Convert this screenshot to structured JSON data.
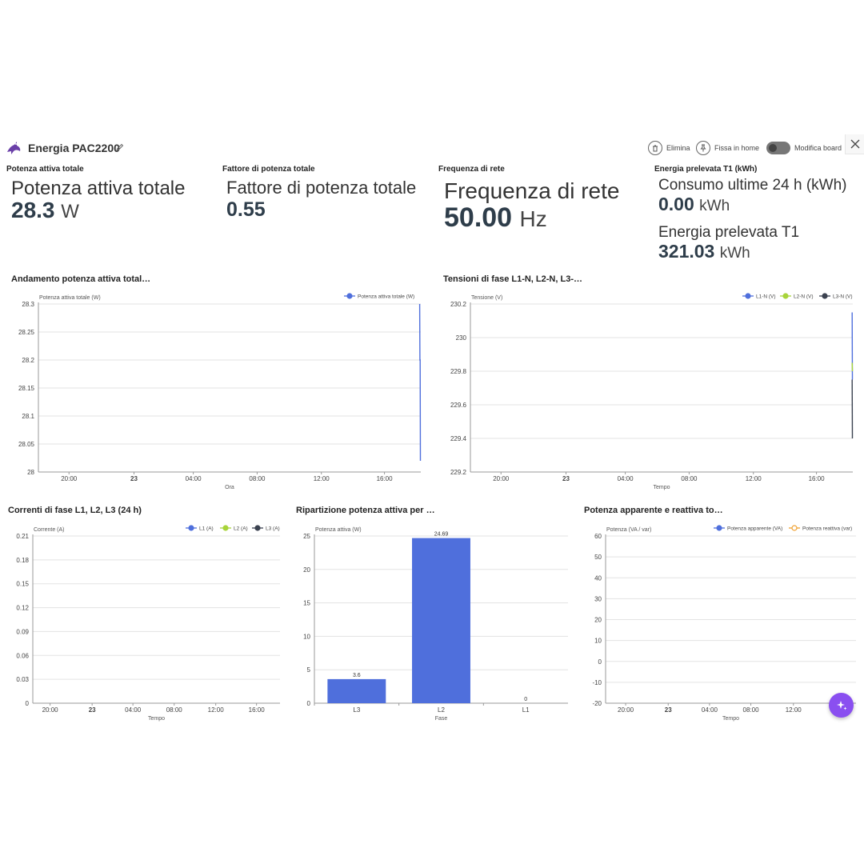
{
  "header": {
    "title": "Energia PAC2200",
    "buttons": {
      "delete": "Elimina",
      "pin": "Fissa in home",
      "edit_board": "Modifica board"
    }
  },
  "cards": {
    "power": {
      "title": "Potenza attiva totale",
      "label": "Potenza attiva totale",
      "value": "28.3",
      "unit": "W"
    },
    "pf": {
      "title": "Fattore di potenza totale",
      "label": "Fattore di potenza totale",
      "value": "0.55"
    },
    "freq": {
      "title": "Frequenza di rete",
      "label": "Frequenza di rete",
      "value": "50.00",
      "unit": "Hz"
    },
    "energy": {
      "title": "Energia prelevata T1 (kWh)",
      "label1": "Consumo ultime 24 h (kWh)",
      "value1": "0.00",
      "unit1": "kWh",
      "label2": "Energia prelevata T1",
      "value2": "321.03",
      "unit2": "kWh"
    }
  },
  "panels": {
    "p1": "Andamento potenza attiva total…",
    "p2": "Tensioni di fase L1-N, L2-N, L3-…",
    "p3": "Correnti di fase L1, L2, L3 (24 h)",
    "p4": "Ripartizione potenza attiva per …",
    "p5": "Potenza apparente e reattiva to…"
  },
  "colors": {
    "blue": "#4f6fdc",
    "lime": "#a8d43a",
    "dark": "#3b4250",
    "orange": "#f0a030",
    "accent": "#8a4ff0"
  },
  "icons": {
    "logo": "bird-logo-icon",
    "edit": "pencil-icon",
    "delete": "trash-icon",
    "pin": "pin-icon",
    "close": "close-icon",
    "fab": "sparkle-icon"
  },
  "chart_data": [
    {
      "id": "power",
      "type": "line",
      "ylabel": "Potenza attiva totale (W)",
      "xlabel": "Ora",
      "ylim": [
        28,
        28.3
      ],
      "yticks": [
        "28.3",
        "28.25",
        "28.2",
        "28.15",
        "28.1",
        "28.05",
        "28"
      ],
      "xticks": [
        "20:00",
        "23",
        "04:00",
        "08:00",
        "12:00",
        "16:00"
      ],
      "series": [
        {
          "name": "Potenza attiva totale (W)",
          "values": [
            28.3,
            28.2,
            28.2,
            28.02
          ]
        }
      ]
    },
    {
      "id": "voltage",
      "type": "line",
      "ylabel": "Tensione (V)",
      "xlabel": "Tempo",
      "ylim": [
        229.2,
        230.2
      ],
      "yticks": [
        "230.2",
        "230",
        "229.8",
        "229.6",
        "229.4",
        "229.2"
      ],
      "xticks": [
        "20:00",
        "23",
        "04:00",
        "08:00",
        "12:00",
        "16:00"
      ],
      "series": [
        {
          "name": "L1-N (V)",
          "values": [
            230.15,
            229.75
          ]
        },
        {
          "name": "L2-N (V)",
          "values": [
            229.85,
            229.8
          ]
        },
        {
          "name": "L3-N (V)",
          "values": [
            229.75,
            229.4
          ]
        }
      ]
    },
    {
      "id": "current",
      "type": "line",
      "ylabel": "Corrente (A)",
      "xlabel": "Tempo",
      "ylim": [
        0,
        0.21
      ],
      "yticks": [
        "0.21",
        "0.18",
        "0.15",
        "0.12",
        "0.09",
        "0.06",
        "0.03",
        "0"
      ],
      "xticks": [
        "20:00",
        "23",
        "04:00",
        "08:00",
        "12:00",
        "16:00"
      ],
      "series": [
        {
          "name": "L1 (A)",
          "values": []
        },
        {
          "name": "L2 (A)",
          "values": []
        },
        {
          "name": "L3 (A)",
          "values": []
        }
      ]
    },
    {
      "id": "phase",
      "type": "bar",
      "ylabel": "Potenza attiva (W)",
      "xlabel": "Fase",
      "ylim": [
        0,
        25
      ],
      "yticks": [
        "25",
        "20",
        "15",
        "10",
        "5",
        "0"
      ],
      "categories": [
        "L3",
        "L2",
        "L1"
      ],
      "values": [
        3.6,
        24.69,
        0
      ],
      "value_labels": [
        "3.6",
        "24.69",
        "0"
      ]
    },
    {
      "id": "apparent",
      "type": "line",
      "ylabel": "Potenza (VA / var)",
      "xlabel": "Tempo",
      "ylim": [
        -20,
        60
      ],
      "yticks": [
        "60",
        "50",
        "40",
        "30",
        "20",
        "10",
        "0",
        "-10",
        "-20"
      ],
      "xticks": [
        "20:00",
        "23",
        "04:00",
        "08:00",
        "12:00",
        "1"
      ],
      "series": [
        {
          "name": "Potenza apparente (VA)",
          "values": []
        },
        {
          "name": "Potenza reattiva (var)",
          "values": []
        }
      ]
    }
  ]
}
